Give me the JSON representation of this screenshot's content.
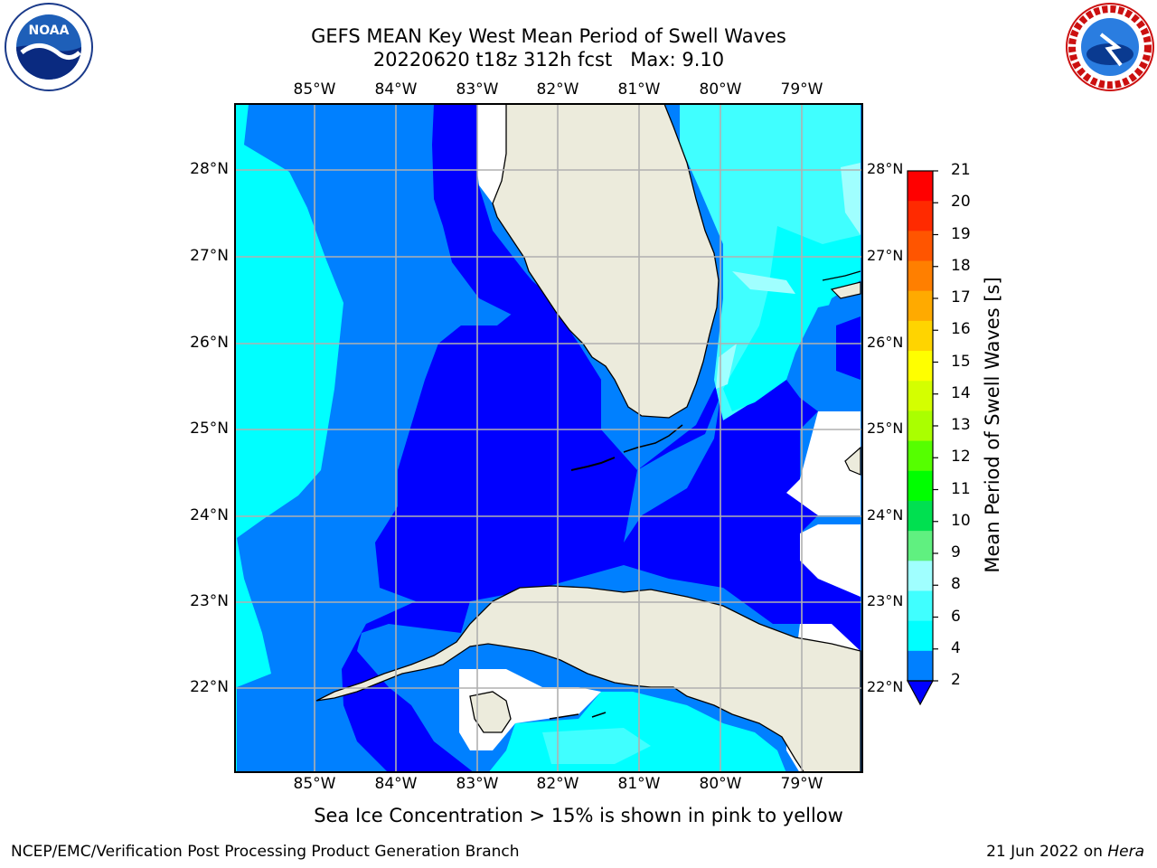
{
  "header": {
    "title": "GEFS MEAN Key West Mean Period of Swell Waves",
    "subtitle": "20220620 t18z 312h fcst   Max: 9.10"
  },
  "logos": {
    "left": "noaa-logo",
    "right": "national-weather-service-logo"
  },
  "map": {
    "lon_labels": [
      "85°W",
      "84°W",
      "83°W",
      "82°W",
      "81°W",
      "80°W",
      "79°W"
    ],
    "lat_labels": [
      "28°N",
      "27°N",
      "26°N",
      "25°N",
      "24°N",
      "23°N",
      "22°N"
    ],
    "colors": {
      "land": "#ecebdc",
      "ocean_deep": "#0000ff",
      "ocean_mid": "#0080ff",
      "ocean_light": "#00ffff",
      "ocean_pale": "#40ffff",
      "ocean_palest": "#a0ffff",
      "missing": "#ffffff",
      "grid": "#b0b0b0"
    }
  },
  "colorbar": {
    "ticks": [
      "21",
      "20",
      "19",
      "18",
      "17",
      "16",
      "15",
      "14",
      "13",
      "12",
      "11",
      "10",
      "9",
      "8",
      "6",
      "4",
      "2"
    ],
    "label": "Mean Period of Swell Waves [s]",
    "colors": [
      "#ff0000",
      "#ff2a00",
      "#ff5500",
      "#ff7f00",
      "#ffaa00",
      "#ffd400",
      "#ffff00",
      "#d4ff00",
      "#aaff00",
      "#55ff00",
      "#00ff00",
      "#00e050",
      "#60f080",
      "#a0ffff",
      "#40ffff",
      "#00ffff",
      "#0080ff"
    ],
    "extend_color": "#0000ff"
  },
  "footer": {
    "note": "Sea Ice Concentration > 15% is shown in pink to yellow",
    "left": "NCEP/EMC/Verification Post Processing Product Generation Branch",
    "right_date": "21 Jun 2022 on ",
    "right_host": "Hera"
  }
}
